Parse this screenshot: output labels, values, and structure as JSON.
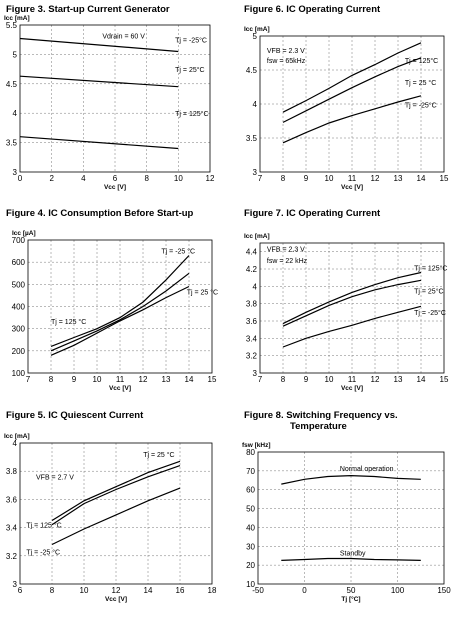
{
  "chart_data": [
    {
      "id": "fig3",
      "type": "line",
      "title": "Figure 3. Start-up Current Generator",
      "ylabel": "Icc [mA]",
      "xlabel": "Vcc [V]",
      "xlim": [
        0,
        12
      ],
      "ylim": [
        3,
        5.5
      ],
      "xticks": [
        0,
        2,
        4,
        6,
        8,
        10,
        12
      ],
      "yticks": [
        3,
        3.5,
        4,
        4.5,
        5,
        5.5
      ],
      "ytick_labels": [
        "3",
        "3.5",
        "4",
        "4.5",
        "5",
        "5.5"
      ],
      "grid": true,
      "annotations": [
        {
          "text": "Vdrain = 60 V",
          "x": 5.2,
          "y": 5.27
        },
        {
          "text": "Tj = -25°C",
          "x": 9.8,
          "y": 5.2
        },
        {
          "text": "Tj = 25°C",
          "x": 9.8,
          "y": 4.7
        },
        {
          "text": "Tj = 125°C",
          "x": 9.8,
          "y": 3.95
        }
      ],
      "series": [
        {
          "x": [
            0,
            10
          ],
          "y": [
            5.27,
            5.05
          ]
        },
        {
          "x": [
            0,
            10
          ],
          "y": [
            4.63,
            4.45
          ]
        },
        {
          "x": [
            0,
            10
          ],
          "y": [
            3.6,
            3.4
          ]
        }
      ]
    },
    {
      "id": "fig6",
      "type": "line",
      "title": "Figure 6. IC Operating Current",
      "ylabel": "Icc [mA]",
      "xlabel": "Vcc [V]",
      "xlim": [
        7,
        15
      ],
      "ylim": [
        3,
        5
      ],
      "xticks": [
        7,
        8,
        9,
        10,
        11,
        12,
        13,
        14,
        15
      ],
      "yticks": [
        3,
        3.5,
        4,
        4.5,
        5
      ],
      "ytick_labels": [
        "3",
        "3.5",
        "4",
        "4.5",
        "5"
      ],
      "grid": true,
      "annotations": [
        {
          "text": "VFB = 2.3 V",
          "x": 7.3,
          "y": 4.75
        },
        {
          "text": "fsw = 65kHz",
          "x": 7.3,
          "y": 4.6
        },
        {
          "text": "Tj = 125°C",
          "x": 13.3,
          "y": 4.6
        },
        {
          "text": "Tj = 25 °C",
          "x": 13.3,
          "y": 4.28
        },
        {
          "text": "Tj = -25°C",
          "x": 13.3,
          "y": 3.95
        }
      ],
      "series": [
        {
          "x": [
            8,
            9,
            10,
            11,
            12,
            13,
            14
          ],
          "y": [
            3.88,
            4.05,
            4.23,
            4.42,
            4.58,
            4.75,
            4.9
          ]
        },
        {
          "x": [
            8,
            9,
            10,
            11,
            12,
            13,
            14
          ],
          "y": [
            3.73,
            3.9,
            4.07,
            4.24,
            4.4,
            4.55,
            4.68
          ]
        },
        {
          "x": [
            8,
            9,
            10,
            11,
            12,
            13,
            14
          ],
          "y": [
            3.43,
            3.58,
            3.72,
            3.83,
            3.93,
            4.03,
            4.12
          ]
        }
      ]
    },
    {
      "id": "fig4",
      "type": "line",
      "title": "Figure 4. IC Consumption Before Start-up",
      "ylabel": "Icc [µA]",
      "xlabel": "Vcc [V]",
      "xlim": [
        7,
        15
      ],
      "ylim": [
        100,
        700
      ],
      "xticks": [
        7,
        8,
        9,
        10,
        11,
        12,
        13,
        14,
        15
      ],
      "yticks": [
        100,
        200,
        300,
        400,
        500,
        600,
        700
      ],
      "ytick_labels": [
        "100",
        "200",
        "300",
        "400",
        "500",
        "600",
        "700"
      ],
      "grid": true,
      "annotations": [
        {
          "text": "Tj = -25 °C",
          "x": 12.8,
          "y": 640
        },
        {
          "text": "Tj = 25 °C",
          "x": 13.9,
          "y": 455
        },
        {
          "text": "Tj = 125 °C",
          "x": 8.0,
          "y": 320
        }
      ],
      "series": [
        {
          "x": [
            8,
            9,
            10,
            11,
            12,
            13,
            14
          ],
          "y": [
            220,
            260,
            300,
            350,
            420,
            520,
            630
          ]
        },
        {
          "x": [
            8,
            9,
            10,
            11,
            12,
            13,
            14
          ],
          "y": [
            200,
            245,
            290,
            340,
            400,
            470,
            550
          ]
        },
        {
          "x": [
            8,
            9,
            10,
            11,
            12,
            13,
            14
          ],
          "y": [
            180,
            225,
            280,
            335,
            385,
            440,
            490
          ]
        }
      ]
    },
    {
      "id": "fig7",
      "type": "line",
      "title": "Figure 7. IC Operating Current",
      "ylabel": "Icc [mA]",
      "xlabel": "Vcc [V]",
      "xlim": [
        7,
        15
      ],
      "ylim": [
        3,
        4.5
      ],
      "xticks": [
        7,
        8,
        9,
        10,
        11,
        12,
        13,
        14,
        15
      ],
      "yticks": [
        3,
        3.2,
        3.4,
        3.6,
        3.8,
        4,
        4.2,
        4.4
      ],
      "ytick_labels": [
        "3",
        "3.2",
        "3.4",
        "3.6",
        "3.8",
        "4",
        "4.2",
        "4.4"
      ],
      "grid": true,
      "annotations": [
        {
          "text": "VFB = 2.3 V",
          "x": 7.3,
          "y": 4.4
        },
        {
          "text": "fsw = 22 kHz",
          "x": 7.3,
          "y": 4.27
        },
        {
          "text": "Tj = 125°C",
          "x": 13.7,
          "y": 4.18
        },
        {
          "text": "Tj = 25°C",
          "x": 13.7,
          "y": 3.92
        },
        {
          "text": "Tj = -25°C",
          "x": 13.7,
          "y": 3.67
        }
      ],
      "series": [
        {
          "x": [
            8,
            9,
            10,
            11,
            12,
            13,
            14
          ],
          "y": [
            3.57,
            3.7,
            3.82,
            3.93,
            4.02,
            4.1,
            4.16
          ]
        },
        {
          "x": [
            8,
            9,
            10,
            11,
            12,
            13,
            14
          ],
          "y": [
            3.54,
            3.66,
            3.78,
            3.88,
            3.96,
            4.02,
            4.07
          ]
        },
        {
          "x": [
            8,
            9,
            10,
            11,
            12,
            13,
            14
          ],
          "y": [
            3.3,
            3.4,
            3.48,
            3.55,
            3.63,
            3.7,
            3.77
          ]
        }
      ]
    },
    {
      "id": "fig5",
      "type": "line",
      "title": "Figure 5. IC Quiescent Current",
      "ylabel": "Icc [mA]",
      "xlabel": "Vcc [V]",
      "xlim": [
        6,
        18
      ],
      "ylim": [
        3,
        4
      ],
      "xticks": [
        6,
        8,
        10,
        12,
        14,
        16,
        18
      ],
      "yticks": [
        3,
        3.2,
        3.4,
        3.6,
        3.8,
        4
      ],
      "ytick_labels": [
        "3",
        "3.2",
        "3.4",
        "3.6",
        "3.8",
        "4"
      ],
      "grid": true,
      "annotations": [
        {
          "text": "VFB = 2.7 V",
          "x": 7.0,
          "y": 3.74
        },
        {
          "text": "Tj = 25 °C",
          "x": 13.7,
          "y": 3.9
        },
        {
          "text": "Tj = 125 °C",
          "x": 6.4,
          "y": 3.4
        },
        {
          "text": "Tj = -25 °C",
          "x": 6.4,
          "y": 3.21
        }
      ],
      "series": [
        {
          "x": [
            8,
            10,
            12,
            14,
            16
          ],
          "y": [
            3.45,
            3.59,
            3.69,
            3.79,
            3.87
          ]
        },
        {
          "x": [
            8,
            10,
            12,
            14,
            16
          ],
          "y": [
            3.42,
            3.57,
            3.67,
            3.76,
            3.84
          ]
        },
        {
          "x": [
            8,
            10,
            12,
            14,
            16
          ],
          "y": [
            3.28,
            3.39,
            3.49,
            3.59,
            3.68
          ]
        }
      ]
    },
    {
      "id": "fig8",
      "type": "line",
      "title": "Figure 8. Switching Frequency vs.",
      "title_line2": "Temperature",
      "ylabel": "fsw [kHz]",
      "xlabel": "Tj [°C]",
      "xlim": [
        -50,
        150
      ],
      "ylim": [
        10,
        80
      ],
      "xticks": [
        -50,
        0,
        50,
        100,
        150
      ],
      "yticks": [
        10,
        20,
        30,
        40,
        50,
        60,
        70,
        80
      ],
      "ytick_labels": [
        "10",
        "20",
        "30",
        "40",
        "50",
        "60",
        "70",
        "80"
      ],
      "grid": true,
      "annotations": [
        {
          "text": "Normal operation",
          "x": 38,
          "y": 70
        },
        {
          "text": "Standby",
          "x": 38,
          "y": 25
        }
      ],
      "series": [
        {
          "x": [
            -25,
            0,
            25,
            50,
            75,
            100,
            125
          ],
          "y": [
            63,
            65.5,
            67,
            67.5,
            67,
            66,
            65.5
          ]
        },
        {
          "x": [
            -25,
            0,
            25,
            50,
            75,
            100,
            125
          ],
          "y": [
            22.5,
            23,
            23.5,
            23.5,
            23,
            22.8,
            22.5
          ]
        }
      ]
    }
  ]
}
